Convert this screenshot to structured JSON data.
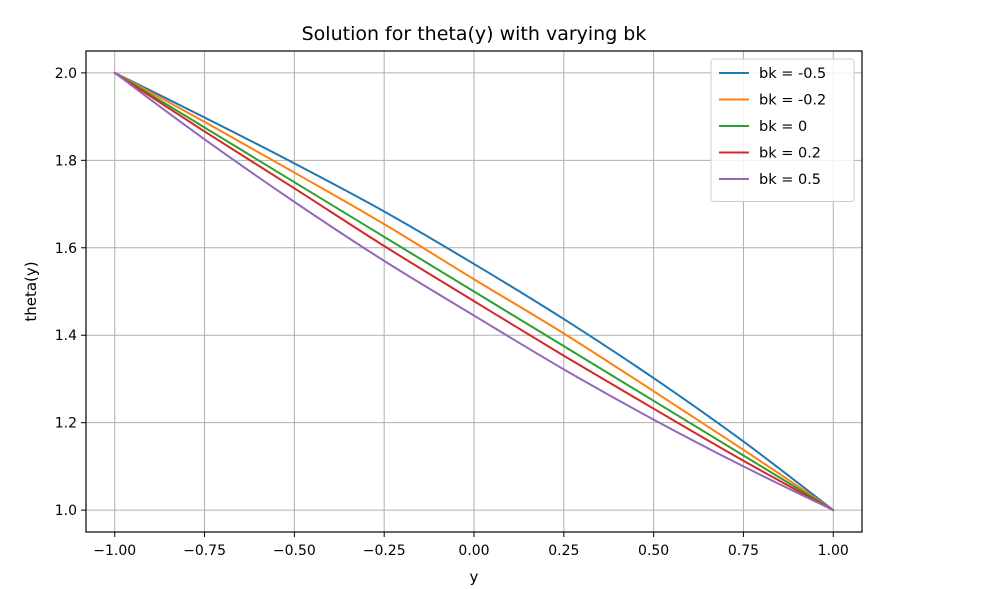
{
  "chart_data": {
    "type": "line",
    "title": "Solution for theta(y) with varying bk",
    "xlabel": "y",
    "ylabel": "theta(y)",
    "xlim": [
      -1.08,
      1.08
    ],
    "ylim": [
      0.95,
      2.05
    ],
    "xticks": [
      -1.0,
      -0.75,
      -0.5,
      -0.25,
      0.0,
      0.25,
      0.5,
      0.75,
      1.0
    ],
    "xtick_labels": [
      "−1.00",
      "−0.75",
      "−0.50",
      "−0.25",
      "0.00",
      "0.25",
      "0.50",
      "0.75",
      "1.00"
    ],
    "yticks": [
      1.0,
      1.2,
      1.4,
      1.6,
      1.8,
      2.0
    ],
    "ytick_labels": [
      "1.0",
      "1.2",
      "1.4",
      "1.6",
      "1.8",
      "2.0"
    ],
    "grid": true,
    "legend_position": "top-right",
    "x": [
      -1.0,
      -0.75,
      -0.5,
      -0.25,
      0.0,
      0.25,
      0.5,
      0.75,
      1.0
    ],
    "series": [
      {
        "name": "bk = -0.5",
        "color": "#1f77b4",
        "values": [
          2.0,
          1.898,
          1.793,
          1.683,
          1.563,
          1.437,
          1.302,
          1.157,
          1.0
        ]
      },
      {
        "name": "bk = -0.2",
        "color": "#ff7f0e",
        "values": [
          2.0,
          1.888,
          1.772,
          1.654,
          1.528,
          1.404,
          1.272,
          1.138,
          1.0
        ]
      },
      {
        "name": "bk = 0",
        "color": "#2ca02c",
        "values": [
          2.0,
          1.875,
          1.75,
          1.625,
          1.5,
          1.375,
          1.25,
          1.125,
          1.0
        ]
      },
      {
        "name": "bk = 0.2",
        "color": "#d62728",
        "values": [
          2.0,
          1.866,
          1.736,
          1.604,
          1.478,
          1.353,
          1.232,
          1.113,
          1.0
        ]
      },
      {
        "name": "bk = 0.5",
        "color": "#9467bd",
        "values": [
          2.0,
          1.848,
          1.705,
          1.57,
          1.445,
          1.322,
          1.207,
          1.1,
          1.0
        ]
      }
    ]
  }
}
